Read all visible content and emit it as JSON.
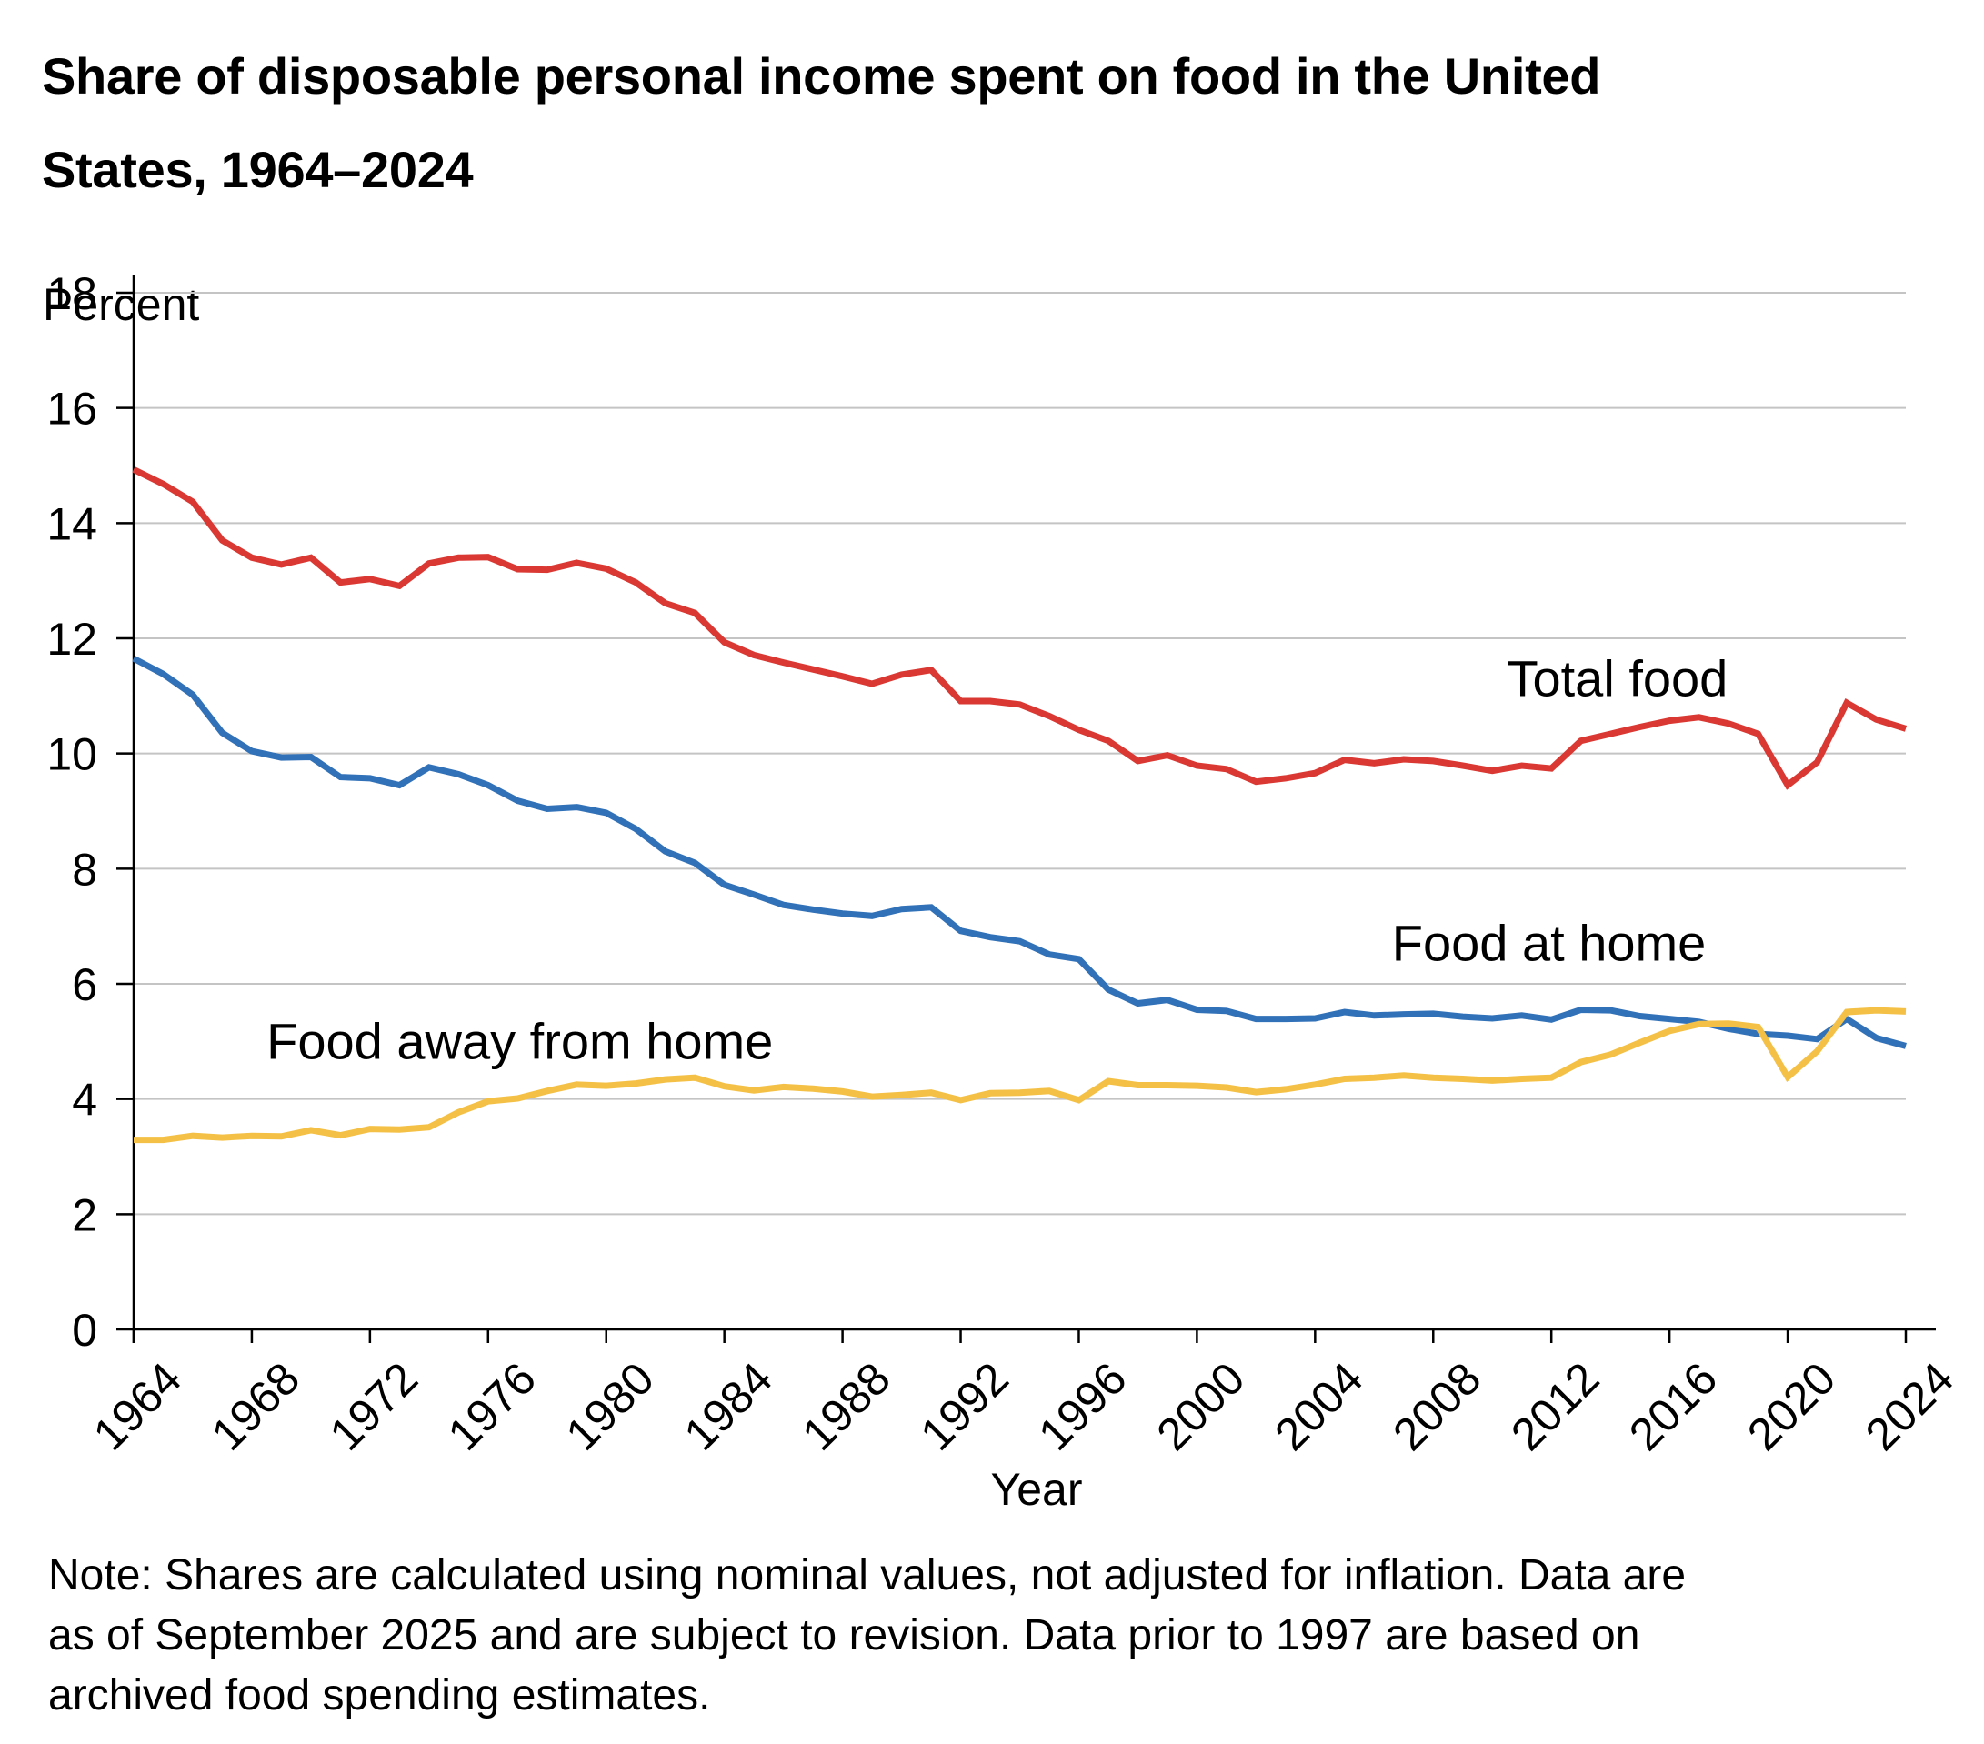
{
  "title_lines": [
    "Share of disposable personal income spent on food in the United",
    "States, 1964–2024"
  ],
  "note_lines": [
    "Note: Shares are calculated using nominal values, not adjusted for inflation. Data are",
    "as of September 2025 and are subject to revision. Data prior to 1997 are based on",
    "archived food spending estimates."
  ],
  "chart_data": {
    "type": "line",
    "title": "Share of disposable personal income spent on food in the United States, 1964–2024",
    "xlabel": "Year",
    "ylabel": "Percent",
    "xlim": [
      1964,
      2024
    ],
    "ylim": [
      0,
      18
    ],
    "yticks": [
      0,
      2,
      4,
      6,
      8,
      10,
      12,
      14,
      16,
      18
    ],
    "xticks": [
      1964,
      1968,
      1972,
      1976,
      1980,
      1984,
      1988,
      1992,
      1996,
      2000,
      2004,
      2008,
      2012,
      2016,
      2020,
      2024
    ],
    "grid": "horizontal",
    "legend": "direct-labels",
    "x": [
      1964,
      1965,
      1966,
      1967,
      1968,
      1969,
      1970,
      1971,
      1972,
      1973,
      1974,
      1975,
      1976,
      1977,
      1978,
      1979,
      1980,
      1981,
      1982,
      1983,
      1984,
      1985,
      1986,
      1987,
      1988,
      1989,
      1990,
      1991,
      1992,
      1993,
      1994,
      1995,
      1996,
      1997,
      1998,
      1999,
      2000,
      2001,
      2002,
      2003,
      2004,
      2005,
      2006,
      2007,
      2008,
      2009,
      2010,
      2011,
      2012,
      2013,
      2014,
      2015,
      2016,
      2017,
      2018,
      2019,
      2020,
      2021,
      2022,
      2023,
      2024
    ],
    "series": [
      {
        "name": "Total food",
        "color": "#DA3832",
        "label_anchor": {
          "x": 2010.5,
          "y": 11.0
        },
        "values": [
          14.93,
          14.68,
          14.37,
          13.7,
          13.4,
          13.28,
          13.4,
          12.97,
          13.03,
          12.91,
          13.3,
          13.4,
          13.41,
          13.2,
          13.19,
          13.31,
          13.21,
          12.97,
          12.61,
          12.44,
          11.93,
          11.71,
          11.58,
          11.46,
          11.34,
          11.21,
          11.37,
          11.45,
          10.91,
          10.91,
          10.85,
          10.65,
          10.41,
          10.22,
          9.87,
          9.97,
          9.79,
          9.73,
          9.51,
          9.57,
          9.66,
          9.89,
          9.83,
          9.9,
          9.87,
          9.79,
          9.7,
          9.79,
          9.74,
          10.22,
          10.34,
          10.46,
          10.57,
          10.63,
          10.52,
          10.34,
          9.45,
          9.85,
          10.88,
          10.59,
          10.43
        ]
      },
      {
        "name": "Food at home",
        "color": "#3171B8",
        "label_anchor": {
          "x": 2006.6,
          "y": 6.4
        },
        "values": [
          11.65,
          11.38,
          11.02,
          10.36,
          10.04,
          9.93,
          9.94,
          9.59,
          9.57,
          9.45,
          9.76,
          9.64,
          9.45,
          9.18,
          9.04,
          9.07,
          8.97,
          8.69,
          8.3,
          8.1,
          7.72,
          7.55,
          7.37,
          7.29,
          7.22,
          7.18,
          7.3,
          7.33,
          6.92,
          6.81,
          6.74,
          6.51,
          6.43,
          5.9,
          5.66,
          5.72,
          5.55,
          5.53,
          5.39,
          5.39,
          5.4,
          5.51,
          5.45,
          5.47,
          5.48,
          5.43,
          5.4,
          5.45,
          5.38,
          5.55,
          5.54,
          5.44,
          5.39,
          5.34,
          5.22,
          5.13,
          5.1,
          5.04,
          5.39,
          5.06,
          4.92
        ]
      },
      {
        "name": "Food away from home",
        "color": "#F4C146",
        "label_anchor": {
          "x": 1968.5,
          "y": 4.7
        },
        "values": [
          3.29,
          3.29,
          3.36,
          3.33,
          3.36,
          3.35,
          3.46,
          3.37,
          3.48,
          3.47,
          3.51,
          3.77,
          3.96,
          4.01,
          4.14,
          4.25,
          4.23,
          4.27,
          4.34,
          4.37,
          4.22,
          4.15,
          4.21,
          4.18,
          4.13,
          4.04,
          4.07,
          4.11,
          3.98,
          4.1,
          4.11,
          4.14,
          3.98,
          4.31,
          4.24,
          4.24,
          4.23,
          4.2,
          4.12,
          4.17,
          4.25,
          4.35,
          4.37,
          4.41,
          4.37,
          4.35,
          4.32,
          4.35,
          4.37,
          4.64,
          4.77,
          4.98,
          5.18,
          5.3,
          5.31,
          5.25,
          4.38,
          4.83,
          5.51,
          5.54,
          5.52
        ]
      }
    ]
  }
}
